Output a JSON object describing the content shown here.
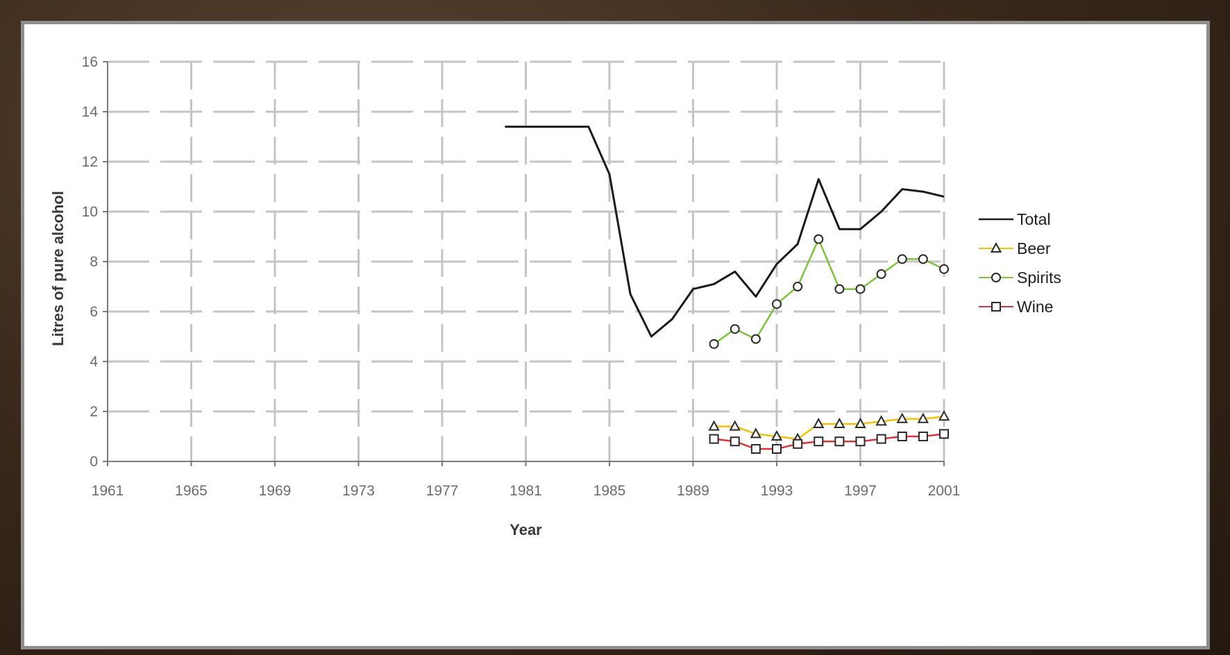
{
  "chart_data": {
    "type": "line",
    "title": "",
    "xlabel": "Year",
    "ylabel": "Litres of pure alcohol",
    "xlim": [
      1961,
      2001
    ],
    "ylim": [
      0,
      16
    ],
    "x_ticks": [
      "1961",
      "1965",
      "1969",
      "1973",
      "1977",
      "1981",
      "1985",
      "1989",
      "1993",
      "1997",
      "2001"
    ],
    "y_ticks": [
      "0",
      "2",
      "4",
      "6",
      "8",
      "10",
      "12",
      "14",
      "16"
    ],
    "grid": true,
    "legend_position": "right",
    "series": [
      {
        "name": "Total",
        "color": "#1a1a1a",
        "marker": "none",
        "points": [
          [
            1980,
            13.4
          ],
          [
            1984,
            13.4
          ],
          [
            1985,
            11.5
          ],
          [
            1986,
            6.7
          ],
          [
            1987,
            5.0
          ],
          [
            1988,
            5.7
          ],
          [
            1989,
            6.9
          ],
          [
            1990,
            7.1
          ],
          [
            1991,
            7.6
          ],
          [
            1992,
            6.6
          ],
          [
            1993,
            7.9
          ],
          [
            1994,
            8.7
          ],
          [
            1995,
            11.3
          ],
          [
            1996,
            9.3
          ],
          [
            1997,
            9.3
          ],
          [
            1998,
            10.0
          ],
          [
            1999,
            10.9
          ],
          [
            2000,
            10.8
          ],
          [
            2001,
            10.6
          ]
        ]
      },
      {
        "name": "Beer",
        "color": "#f2c200",
        "marker": "triangle",
        "points": [
          [
            1990,
            1.4
          ],
          [
            1991,
            1.4
          ],
          [
            1992,
            1.1
          ],
          [
            1993,
            1.0
          ],
          [
            1994,
            0.9
          ],
          [
            1995,
            1.5
          ],
          [
            1996,
            1.5
          ],
          [
            1997,
            1.5
          ],
          [
            1998,
            1.6
          ],
          [
            1999,
            1.7
          ],
          [
            2000,
            1.7
          ],
          [
            2001,
            1.8
          ]
        ]
      },
      {
        "name": "Spirits",
        "color": "#7cc33a",
        "marker": "circle",
        "points": [
          [
            1990,
            4.7
          ],
          [
            1991,
            5.3
          ],
          [
            1992,
            4.9
          ],
          [
            1993,
            6.3
          ],
          [
            1994,
            7.0
          ],
          [
            1995,
            8.9
          ],
          [
            1996,
            6.9
          ],
          [
            1997,
            6.9
          ],
          [
            1998,
            7.5
          ],
          [
            1999,
            8.1
          ],
          [
            2000,
            8.1
          ],
          [
            2001,
            7.7
          ]
        ]
      },
      {
        "name": "Wine",
        "color": "#e0313b",
        "marker": "square",
        "points": [
          [
            1990,
            0.9
          ],
          [
            1991,
            0.8
          ],
          [
            1992,
            0.5
          ],
          [
            1993,
            0.5
          ],
          [
            1994,
            0.7
          ],
          [
            1995,
            0.8
          ],
          [
            1996,
            0.8
          ],
          [
            1997,
            0.8
          ],
          [
            1998,
            0.9
          ],
          [
            1999,
            1.0
          ],
          [
            2000,
            1.0
          ],
          [
            2001,
            1.1
          ]
        ]
      }
    ]
  }
}
